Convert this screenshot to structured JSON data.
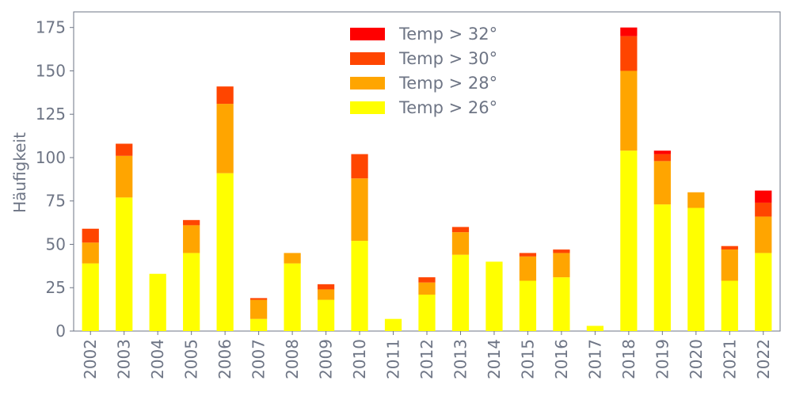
{
  "chart_data": {
    "type": "bar",
    "stacked": true,
    "title": "",
    "xlabel": "",
    "ylabel": "Häufigkeit",
    "ylim": [
      0,
      184
    ],
    "yticks": [
      0,
      25,
      50,
      75,
      100,
      125,
      150,
      175
    ],
    "grid": false,
    "legend_position": "top-center",
    "categories": [
      "2002",
      "2003",
      "2004",
      "2005",
      "2006",
      "2007",
      "2008",
      "2009",
      "2010",
      "2011",
      "2012",
      "2013",
      "2014",
      "2015",
      "2016",
      "2017",
      "2018",
      "2019",
      "2020",
      "2021",
      "2022"
    ],
    "series": [
      {
        "name": "Temp > 26°",
        "color": "#ffff00",
        "values": [
          39,
          77,
          33,
          45,
          91,
          7,
          39,
          18,
          52,
          7,
          21,
          44,
          40,
          29,
          31,
          3,
          104,
          73,
          71,
          29,
          45
        ]
      },
      {
        "name": "Temp > 28°",
        "color": "#ffa500",
        "values": [
          12,
          24,
          0,
          16,
          40,
          11,
          6,
          6,
          36,
          0,
          7,
          13,
          0,
          14,
          14,
          0,
          46,
          25,
          9,
          18,
          21
        ]
      },
      {
        "name": "Temp > 30°",
        "color": "#ff4500",
        "values": [
          8,
          7,
          0,
          3,
          10,
          1,
          0,
          3,
          14,
          0,
          3,
          3,
          0,
          2,
          2,
          0,
          20,
          4,
          0,
          2,
          8
        ]
      },
      {
        "name": "Temp > 32°",
        "color": "#ff0000",
        "values": [
          0,
          0,
          0,
          0,
          0,
          0,
          0,
          0,
          0,
          0,
          0,
          0,
          0,
          0,
          0,
          0,
          5,
          2,
          0,
          0,
          7
        ]
      }
    ],
    "legend_order": [
      "Temp > 32°",
      "Temp > 30°",
      "Temp > 28°",
      "Temp > 26°"
    ]
  }
}
